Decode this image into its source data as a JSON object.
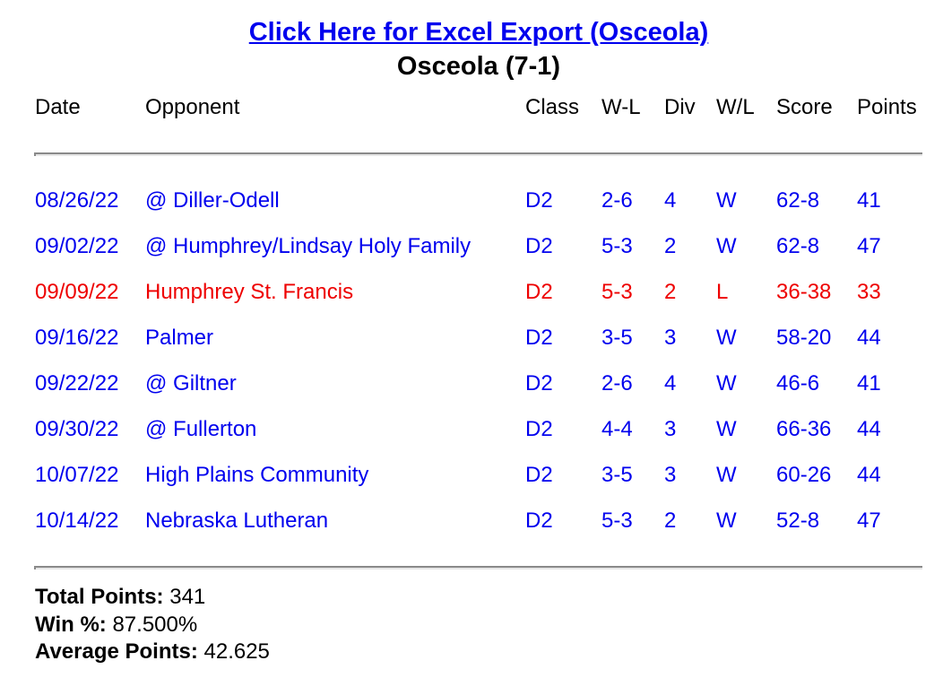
{
  "export_link": "Click Here for Excel Export (Osceola)",
  "team_title": "Osceola (7-1)",
  "columns": [
    "Date",
    "Opponent",
    "Class",
    "W-L",
    "Div",
    "W/L",
    "Score",
    "Points"
  ],
  "colors": {
    "win": "#0000ee",
    "loss": "#ee0000"
  },
  "games": [
    [
      "08/26/22",
      "@ Diller-Odell",
      "D2",
      "2-6",
      "4",
      "W",
      "62-8",
      "41"
    ],
    [
      "09/02/22",
      "@ Humphrey/Lindsay Holy Family",
      "D2",
      "5-3",
      "2",
      "W",
      "62-8",
      "47"
    ],
    [
      "09/09/22",
      "Humphrey St. Francis",
      "D2",
      "5-3",
      "2",
      "L",
      "36-38",
      "33"
    ],
    [
      "09/16/22",
      "Palmer",
      "D2",
      "3-5",
      "3",
      "W",
      "58-20",
      "44"
    ],
    [
      "09/22/22",
      "@ Giltner",
      "D2",
      "2-6",
      "4",
      "W",
      "46-6",
      "41"
    ],
    [
      "09/30/22",
      "@ Fullerton",
      "D2",
      "4-4",
      "3",
      "W",
      "66-36",
      "44"
    ],
    [
      "10/07/22",
      "High Plains Community",
      "D2",
      "3-5",
      "3",
      "W",
      "60-26",
      "44"
    ],
    [
      "10/14/22",
      "Nebraska Lutheran",
      "D2",
      "5-3",
      "2",
      "W",
      "52-8",
      "47"
    ]
  ],
  "summary": {
    "total_label": "Total Points:",
    "total": "341",
    "win_label": "Win %:",
    "win": "87.500%",
    "avg_label": "Average Points:",
    "avg": "42.625"
  }
}
